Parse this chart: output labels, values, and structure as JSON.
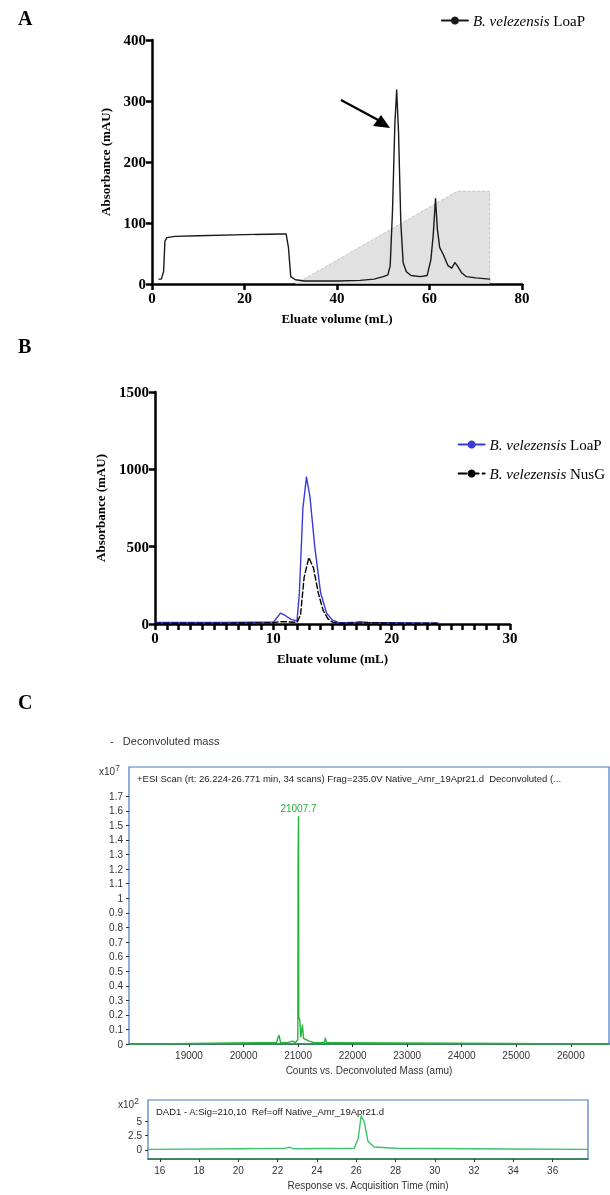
{
  "chart_data": [
    {
      "type": "line",
      "annotations": [
        "A"
      ],
      "xlabel": "Eluate volume (mL)",
      "ylabel": "Absorbance (mAU)",
      "xlim": [
        0,
        80
      ],
      "xticks": [
        0,
        20,
        40,
        60,
        80
      ],
      "ylim": [
        0,
        400
      ],
      "yticks": [
        0,
        100,
        200,
        300,
        400
      ],
      "legend": "top right",
      "series": [
        {
          "name": "B. velezensis LoaP",
          "color": "#1a1a1a",
          "x": [
            1.5,
            2,
            2.5,
            2.8,
            3.2,
            5,
            10,
            20,
            28,
            29,
            29.5,
            30,
            31,
            33,
            40,
            45,
            48,
            50,
            51,
            51.5,
            52,
            52.5,
            52.9,
            53.3,
            53.8,
            54.3,
            55,
            56,
            58,
            59.5,
            60.3,
            60.8,
            61.3,
            61.7,
            62.2,
            63,
            64,
            64.8,
            65.5,
            66,
            67,
            68,
            70,
            73
          ],
          "values": [
            8,
            8,
            20,
            70,
            76,
            78,
            79,
            81,
            82,
            82,
            60,
            12,
            7,
            5,
            5,
            6,
            8,
            12,
            15,
            30,
            120,
            260,
            318,
            250,
            100,
            35,
            20,
            14,
            12,
            14,
            40,
            80,
            140,
            90,
            60,
            48,
            30,
            26,
            35,
            30,
            18,
            12,
            10,
            8
          ]
        },
        {
          "type": "area",
          "color": "#d9d9d9",
          "x": [
            31,
            66,
            73,
            73
          ],
          "values": [
            0,
            152,
            152,
            0
          ]
        }
      ]
    },
    {
      "type": "line",
      "annotations": [
        "B"
      ],
      "xlabel": "Eluate volume (mL)",
      "ylabel": "Absorbance (mAU)",
      "xlim": [
        0,
        30
      ],
      "xticks": [
        0,
        {
          "value": 1,
          "label": null
        },
        {
          "value": 2,
          "label": null
        },
        {
          "value": 3,
          "label": null
        },
        {
          "value": 4,
          "label": null
        },
        {
          "value": 5,
          "label": null
        },
        {
          "value": 6,
          "label": null
        },
        {
          "value": 7,
          "label": null
        },
        {
          "value": 8,
          "label": null
        },
        {
          "value": 9,
          "label": null
        },
        10,
        {
          "value": 11,
          "label": null
        },
        {
          "value": 12,
          "label": null
        },
        {
          "value": 13,
          "label": null
        },
        {
          "value": 14,
          "label": null
        },
        {
          "value": 15,
          "label": null
        },
        {
          "value": 16,
          "label": null
        },
        {
          "value": 17,
          "label": null
        },
        {
          "value": 18,
          "label": null
        },
        {
          "value": 19,
          "label": null
        },
        20,
        {
          "value": 21,
          "label": null
        },
        {
          "value": 22,
          "label": null
        },
        {
          "value": 23,
          "label": null
        },
        {
          "value": 24,
          "label": null
        },
        {
          "value": 25,
          "label": null
        },
        {
          "value": 26,
          "label": null
        },
        {
          "value": 27,
          "label": null
        },
        {
          "value": 28,
          "label": null
        },
        {
          "value": 29,
          "label": null
        },
        30
      ],
      "ylim": [
        0,
        1500
      ],
      "yticks": [
        0,
        500,
        1000,
        1500
      ],
      "legend": "right",
      "series": [
        {
          "name": "B. velezensis LoaP",
          "color": "#3a3ad6",
          "x": [
            0,
            5,
            10,
            10.3,
            10.6,
            11,
            11.5,
            12,
            12.2,
            12.5,
            12.8,
            13.1,
            13.5,
            14,
            14.5,
            15,
            15.5,
            16,
            17,
            17.3,
            18,
            20,
            24
          ],
          "values": [
            10,
            10,
            12,
            40,
            70,
            55,
            30,
            20,
            200,
            750,
            950,
            820,
            500,
            200,
            70,
            25,
            10,
            8,
            12,
            15,
            10,
            8,
            5
          ]
        },
        {
          "name": "B. velezensis NusG",
          "color": "#000000",
          "line_style": "dashed",
          "x": [
            0,
            5,
            10,
            10.5,
            11,
            12,
            12.3,
            12.6,
            13,
            13.4,
            13.8,
            14.2,
            14.6,
            15,
            15.5,
            16,
            18,
            20,
            24
          ],
          "values": [
            5,
            5,
            8,
            15,
            15,
            10,
            60,
            300,
            430,
            360,
            200,
            90,
            35,
            12,
            6,
            5,
            8,
            6,
            5
          ]
        }
      ]
    },
    {
      "type": "line",
      "annotations": [
        "C",
        "-   Deconvoluted mass",
        {
          "text": "21007.7",
          "x": 21007.7,
          "y": 1.56
        }
      ],
      "title": "+ESI Scan (rt: 26.224-26.771 min, 34 scans) Frag=235.0V Native_Amr_19Apr21.d  Deconvoluted (...",
      "xlabel": "Counts vs. Deconvoluted Mass (amu)",
      "ylabel": "x10$^{7}$",
      "xlim": [
        17900,
        26700
      ],
      "xticks": [
        19000,
        20000,
        21000,
        22000,
        23000,
        24000,
        25000,
        26000
      ],
      "ylim": [
        0,
        1.9
      ],
      "yticks": [
        0,
        0.1,
        0.2,
        0.3,
        0.4,
        0.5,
        0.6,
        0.7,
        0.8,
        0.9,
        1,
        1.1,
        1.2,
        1.3,
        1.4,
        1.5,
        1.6,
        1.7
      ],
      "series": [
        {
          "color": "#22b33a",
          "x": [
            17900,
            20500,
            20600,
            20650,
            20680,
            20800,
            20900,
            20950,
            20995,
            21000,
            21007.7,
            21012,
            21030,
            21050,
            21080,
            21100,
            21200,
            21300,
            21480,
            21500,
            21520,
            21700,
            26700
          ],
          "values": [
            0,
            0.01,
            0.01,
            0.06,
            0.01,
            0.01,
            0.02,
            0.01,
            0.03,
            1.25,
            1.56,
            0.18,
            0.17,
            0.05,
            0.13,
            0.04,
            0.02,
            0.01,
            0.01,
            0.04,
            0.01,
            0.01,
            0
          ]
        }
      ]
    },
    {
      "type": "line",
      "title": "DAD1 - A:Sig=210,10  Ref=off Native_Amr_19Apr21.d",
      "xlabel": "Response vs. Acquisition Time (min)",
      "ylabel": "x10$^{2}$",
      "xlim": [
        15.4,
        37.8
      ],
      "xticks": [
        16,
        18,
        20,
        22,
        24,
        26,
        28,
        30,
        32,
        34,
        36
      ],
      "ylim": [
        -1.6,
        8.7
      ],
      "yticks": [
        0,
        2.5,
        5
      ],
      "series": [
        {
          "color": "#3cc46a",
          "x": [
            15.4,
            20,
            22.4,
            22.6,
            22.8,
            25.9,
            26.1,
            26.25,
            26.4,
            26.6,
            26.9,
            28,
            32,
            37.8
          ],
          "values": [
            0.1,
            0.2,
            0.3,
            0.5,
            0.2,
            0.3,
            2,
            5.9,
            5,
            1.5,
            0.5,
            0.3,
            0.2,
            0.1
          ]
        }
      ]
    }
  ]
}
